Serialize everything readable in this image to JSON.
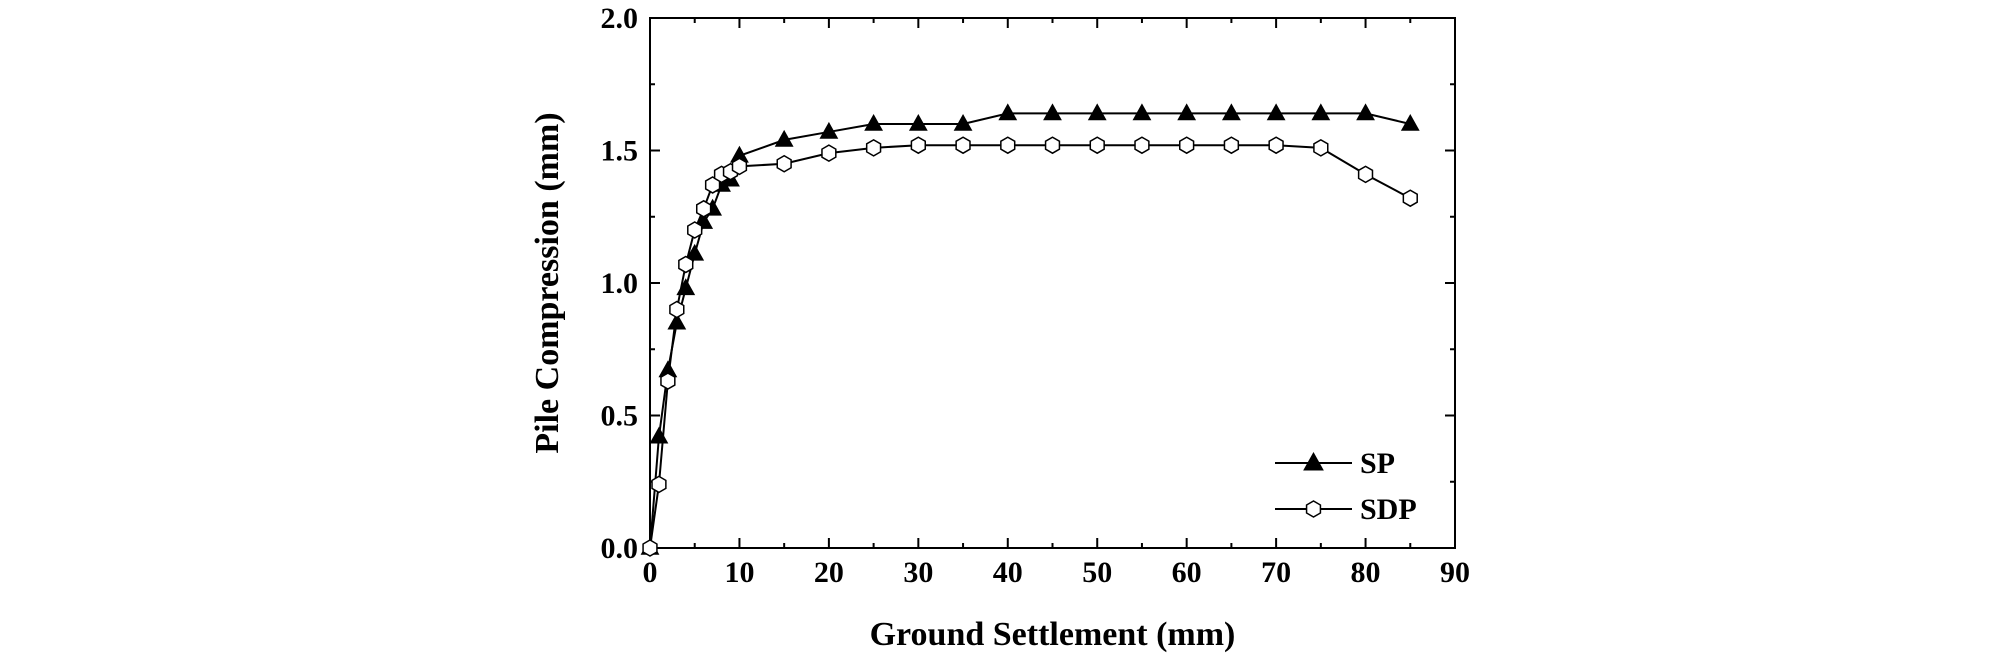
{
  "chart_data": {
    "type": "line",
    "title": "",
    "xlabel": "Ground Settlement (mm)",
    "ylabel": "Pile Compression (mm)",
    "xlim": [
      0,
      90
    ],
    "ylim": [
      0,
      2.0
    ],
    "xticks": [
      0,
      10,
      20,
      30,
      40,
      50,
      60,
      70,
      80,
      90
    ],
    "yticks": [
      0.0,
      0.5,
      1.0,
      1.5,
      2.0
    ],
    "xtick_labels": [
      "0",
      "10",
      "20",
      "30",
      "40",
      "50",
      "60",
      "70",
      "80",
      "90"
    ],
    "ytick_labels": [
      "0.0",
      "0.5",
      "1.0",
      "1.5",
      "2.0"
    ],
    "grid": false,
    "legend_position": "bottom-right",
    "series": [
      {
        "name": "SP",
        "marker": "filled-triangle",
        "color": "#000000",
        "points": [
          [
            0,
            0.0
          ],
          [
            1,
            0.42
          ],
          [
            2,
            0.67
          ],
          [
            3,
            0.85
          ],
          [
            4,
            0.98
          ],
          [
            5,
            1.11
          ],
          [
            6,
            1.23
          ],
          [
            7,
            1.28
          ],
          [
            8,
            1.37
          ],
          [
            9,
            1.39
          ],
          [
            10,
            1.48
          ],
          [
            15,
            1.54
          ],
          [
            20,
            1.57
          ],
          [
            25,
            1.6
          ],
          [
            30,
            1.6
          ],
          [
            35,
            1.6
          ],
          [
            40,
            1.64
          ],
          [
            45,
            1.64
          ],
          [
            50,
            1.64
          ],
          [
            55,
            1.64
          ],
          [
            60,
            1.64
          ],
          [
            65,
            1.64
          ],
          [
            70,
            1.64
          ],
          [
            75,
            1.64
          ],
          [
            80,
            1.64
          ],
          [
            85,
            1.6
          ]
        ]
      },
      {
        "name": "SDP",
        "marker": "open-hexagon",
        "color": "#000000",
        "points": [
          [
            0,
            0.0
          ],
          [
            1,
            0.24
          ],
          [
            2,
            0.63
          ],
          [
            3,
            0.9
          ],
          [
            4,
            1.07
          ],
          [
            5,
            1.2
          ],
          [
            6,
            1.28
          ],
          [
            7,
            1.37
          ],
          [
            8,
            1.41
          ],
          [
            9,
            1.42
          ],
          [
            10,
            1.44
          ],
          [
            15,
            1.45
          ],
          [
            20,
            1.49
          ],
          [
            25,
            1.51
          ],
          [
            30,
            1.52
          ],
          [
            35,
            1.52
          ],
          [
            40,
            1.52
          ],
          [
            45,
            1.52
          ],
          [
            50,
            1.52
          ],
          [
            55,
            1.52
          ],
          [
            60,
            1.52
          ],
          [
            65,
            1.52
          ],
          [
            70,
            1.52
          ],
          [
            75,
            1.51
          ],
          [
            80,
            1.41
          ],
          [
            85,
            1.32
          ]
        ]
      }
    ]
  }
}
